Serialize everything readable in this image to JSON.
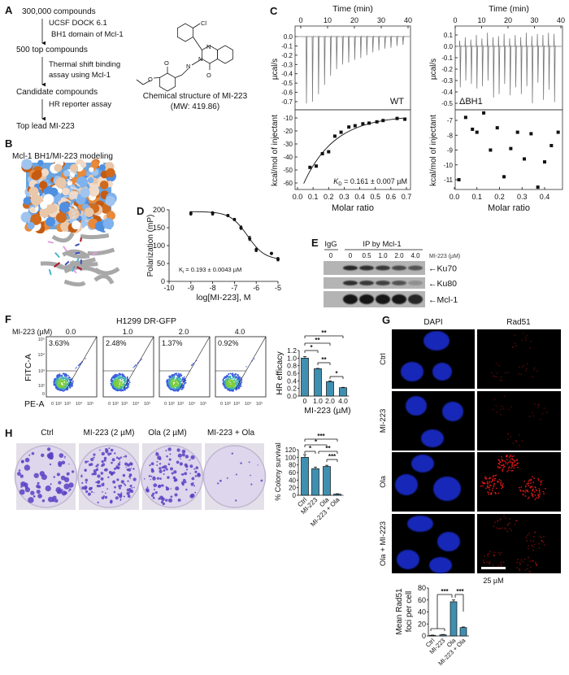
{
  "panel_labels": {
    "A": "A",
    "B": "B",
    "C": "C",
    "D": "D",
    "E": "E",
    "F": "F",
    "G": "G",
    "H": "H"
  },
  "A": {
    "steps": [
      "300,000 compounds",
      "500 top compounds",
      "Candidate compounds",
      "Top lead MI-223"
    ],
    "methods": [
      [
        "UCSF DOCK 6.1",
        "BH1 domain of Mcl-1"
      ],
      [
        "Thermal shift binding",
        "assay using Mcl-1"
      ],
      [
        "HR reporter assay"
      ]
    ],
    "structure_atoms": {
      "cl": "Cl",
      "n1": "N",
      "n2": "N",
      "n3": "N",
      "o1": "O",
      "o2": "O",
      "o3": "O"
    },
    "caption": "Chemical structure of MI-223",
    "mw": "(MW: 419.86)"
  },
  "B": {
    "title": "Mcl-1 BH1/MI-223 modeling"
  },
  "chart_data": [
    {
      "panel": "C-WT",
      "type": "line+scatter",
      "top": {
        "xlabel": "Time (min)",
        "xlim": [
          0,
          40
        ],
        "xticks": [
          "0",
          "10",
          "20",
          "30",
          "40"
        ],
        "ylabel": "µcal/s",
        "ylim": [
          0,
          -0.7
        ],
        "yticks": [
          "0.0",
          "-0.1",
          "-0.2",
          "-0.3",
          "-0.4",
          "-0.5",
          "-0.6",
          "-0.7"
        ],
        "label": "WT",
        "peak_minima": [
          -0.72,
          -0.7,
          -0.62,
          -0.52,
          -0.42,
          -0.35,
          -0.3,
          -0.28,
          -0.25,
          -0.23,
          -0.2,
          -0.17,
          -0.15,
          -0.13,
          -0.12,
          -0.1,
          -0.09
        ]
      },
      "bottom": {
        "xlabel": "Molar ratio",
        "xlim": [
          0,
          0.7
        ],
        "xticks": [
          "0.0",
          "0.1",
          "0.2",
          "0.3",
          "0.4",
          "0.5",
          "0.6",
          "0.7"
        ],
        "ylabel": "kcal/mol of injectant",
        "yticks": [
          "-10",
          "-20",
          "-30",
          "-40",
          "-50",
          "-60"
        ],
        "x": [
          0.08,
          0.12,
          0.16,
          0.2,
          0.24,
          0.28,
          0.33,
          0.37,
          0.42,
          0.46,
          0.51,
          0.55,
          0.64,
          0.69
        ],
        "y": [
          -48,
          -47,
          -37.5,
          -36,
          -24,
          -21,
          -17,
          -16,
          -14.5,
          -14,
          -13,
          -12,
          -10.4,
          -11
        ],
        "kd_symbol": "K",
        "kd_sub": "D",
        "kd_value": " = 0.161 ± 0.007 µM"
      }
    },
    {
      "panel": "C-dBH1",
      "type": "line+scatter",
      "top": {
        "xlabel": "Time (min)",
        "xlim": [
          0,
          40
        ],
        "xticks": [
          "0",
          "10",
          "20",
          "30",
          "40"
        ],
        "ylabel": "µcal/s",
        "ylim": [
          0.1,
          -0.5
        ],
        "yticks": [
          "0.1",
          "0.0",
          "-0.1",
          "-0.2",
          "-0.3",
          "-0.4",
          "-0.5"
        ],
        "label": "ΔBH1",
        "peak_minima": [
          -0.36,
          -0.3,
          -0.33,
          -0.37,
          -0.35,
          -0.3,
          -0.45,
          -0.42,
          -0.33,
          -0.43,
          -0.36,
          -0.42,
          -0.35,
          -0.5,
          -0.32,
          -0.47,
          -0.38,
          -0.49
        ],
        "peak_maxima": [
          0.05,
          0.08,
          0.06,
          0.1,
          0.07,
          0.12,
          0.08,
          0.09,
          0.11,
          0.07,
          0.1,
          0.08,
          0.12,
          0.09,
          0.11,
          0.1,
          0.12,
          0.11
        ]
      },
      "bottom": {
        "xlabel": "Molar ratio",
        "xlim": [
          0,
          0.45
        ],
        "xticks": [
          "0.0",
          "0.1",
          "0.2",
          "0.3",
          "0.4"
        ],
        "ylabel": "kcal/mol of injectant",
        "yticks": [
          "-7",
          "-8",
          "-9",
          "-10",
          "-11"
        ],
        "x": [
          0.02,
          0.05,
          0.08,
          0.1,
          0.13,
          0.16,
          0.19,
          0.22,
          0.25,
          0.28,
          0.31,
          0.34,
          0.37,
          0.4,
          0.43,
          0.46
        ],
        "y": [
          -11,
          -6.8,
          -7.6,
          -7.8,
          -6.5,
          -9,
          -7.5,
          -10.8,
          -8.9,
          -7.8,
          -9.6,
          -7.9,
          -11.5,
          -9.8,
          -8.7,
          -7.8
        ]
      }
    },
    {
      "panel": "D",
      "type": "scatter+line",
      "xlabel": "log[MI-223], M",
      "ylabel": "Polarization (mP)",
      "xlim": [
        -10,
        -5
      ],
      "ylim": [
        0,
        200
      ],
      "xticks": [
        "-10",
        "-9",
        "-8",
        "-7",
        "-6",
        "-5"
      ],
      "yticks": [
        "0",
        "50",
        "100",
        "150",
        "200"
      ],
      "x": [
        -9,
        -8,
        -7.3,
        -7,
        -6.7,
        -6.3,
        -6,
        -5.3,
        -5
      ],
      "y": [
        190,
        190,
        184,
        173,
        150,
        120,
        88,
        78,
        62
      ],
      "err": [
        5,
        5,
        3,
        3,
        5,
        6,
        5,
        2,
        5
      ],
      "ki_symbol": "K",
      "ki_sub": "i",
      "ki_value": " = 0.193 ± 0.0043 µM"
    },
    {
      "panel": "F",
      "type": "bar",
      "categories": [
        "0",
        "1.0",
        "2.0",
        "4.0"
      ],
      "values": [
        1.0,
        0.72,
        0.38,
        0.22
      ],
      "err": [
        0.04,
        0.01,
        0.02,
        0.01
      ],
      "xlabel": "MI-223 (µM)",
      "ylabel": "HR efficacy",
      "ylim": [
        0,
        1.2
      ],
      "yticks": [
        "0.0",
        "0.2",
        "0.4",
        "0.6",
        "0.8",
        "1.0",
        "1.2"
      ],
      "significance": [
        {
          "from": 0,
          "to": 3,
          "label": "**"
        },
        {
          "from": 0,
          "to": 2,
          "label": "**"
        },
        {
          "from": 0,
          "to": 1,
          "label": "*"
        },
        {
          "from": 1,
          "to": 2,
          "label": "**"
        },
        {
          "from": 2,
          "to": 3,
          "label": "*"
        }
      ],
      "bar_color": "#3f8fb0"
    },
    {
      "panel": "H",
      "type": "bar",
      "categories": [
        "Ctrl",
        "MI-223",
        "Ola",
        "MI-223 + Ola"
      ],
      "values": [
        100,
        70,
        76,
        3
      ],
      "err": [
        7,
        4,
        3,
        1
      ],
      "xlabel": "",
      "ylabel": "% Colony survival",
      "ylim": [
        0,
        120
      ],
      "yticks": [
        "0",
        "20",
        "40",
        "60",
        "80",
        "100",
        "120"
      ],
      "significance": [
        {
          "from": 0,
          "to": 3,
          "label": "***"
        },
        {
          "from": 0,
          "to": 2,
          "label": "*"
        },
        {
          "from": 0,
          "to": 1,
          "label": "*"
        },
        {
          "from": 1,
          "to": 3,
          "label": "**"
        },
        {
          "from": 2,
          "to": 3,
          "label": "***"
        }
      ],
      "bar_color": "#3f8fb0"
    },
    {
      "panel": "G",
      "type": "bar",
      "categories": [
        "Ctrl",
        "MI-223",
        "Ola",
        "MI-223 + Ola"
      ],
      "values": [
        1,
        2,
        57,
        14
      ],
      "err": [
        0.5,
        0.5,
        3,
        1
      ],
      "xlabel": "",
      "ylabel": [
        "Mean Rad51",
        "foci per cell"
      ],
      "ylim": [
        0,
        80
      ],
      "yticks": [
        "0",
        "20",
        "40",
        "60",
        "80"
      ],
      "significance": [
        {
          "from": "0-1",
          "to": 2,
          "label": "***"
        },
        {
          "from": 2,
          "to": 3,
          "label": "***"
        }
      ],
      "bar_color": "#3f8fb0"
    }
  ],
  "C": {
    "kd_note": ""
  },
  "E": {
    "igg_label": "IgG",
    "ip_label": "IP by Mcl-1",
    "doses": [
      "0",
      "0",
      "0.5",
      "1.0",
      "2.0",
      "4.0"
    ],
    "dose_unit": "MI-223 (µM)",
    "blots": [
      {
        "label": "←Ku70",
        "band_intensity": [
          0,
          0.9,
          0.85,
          0.8,
          0.7,
          0.6
        ]
      },
      {
        "label": "←Ku80",
        "band_intensity": [
          0,
          0.85,
          0.8,
          0.75,
          0.65,
          0.25
        ]
      },
      {
        "label": "←Mcl-1",
        "band_intensity": [
          0,
          1,
          1,
          1,
          1,
          0.9
        ]
      }
    ]
  },
  "F": {
    "title": "H1299 DR-GFP",
    "dose_label": "MI-223 (µM)",
    "doses": [
      "0.0",
      "1.0",
      "2.0",
      "4.0"
    ],
    "percents": [
      "3.63%",
      "2.48%",
      "1.37%",
      "0.92%"
    ],
    "y_axis": "FITC-A",
    "x_axis": "PE-A",
    "y_ticks": [
      "10⁵",
      "10⁴",
      "10³",
      "10²",
      "0"
    ],
    "x_ticks": [
      "0",
      "10²",
      "10³",
      "10⁴",
      "10⁵"
    ]
  },
  "G": {
    "columns": [
      "DAPI",
      "Rad51"
    ],
    "rows": [
      "Ctrl",
      "MI-223",
      "Ola",
      "Ola + MI-223"
    ],
    "scale_bar": "25 µM",
    "dapi_color": "#1a2fd8",
    "rad51_color": "#e01818"
  },
  "H": {
    "plates": [
      "Ctrl",
      "MI-223 (2 µM)",
      "Ola (2 µM)",
      "MI-223 + Ola"
    ],
    "stain_color": "#5b3fc4"
  }
}
